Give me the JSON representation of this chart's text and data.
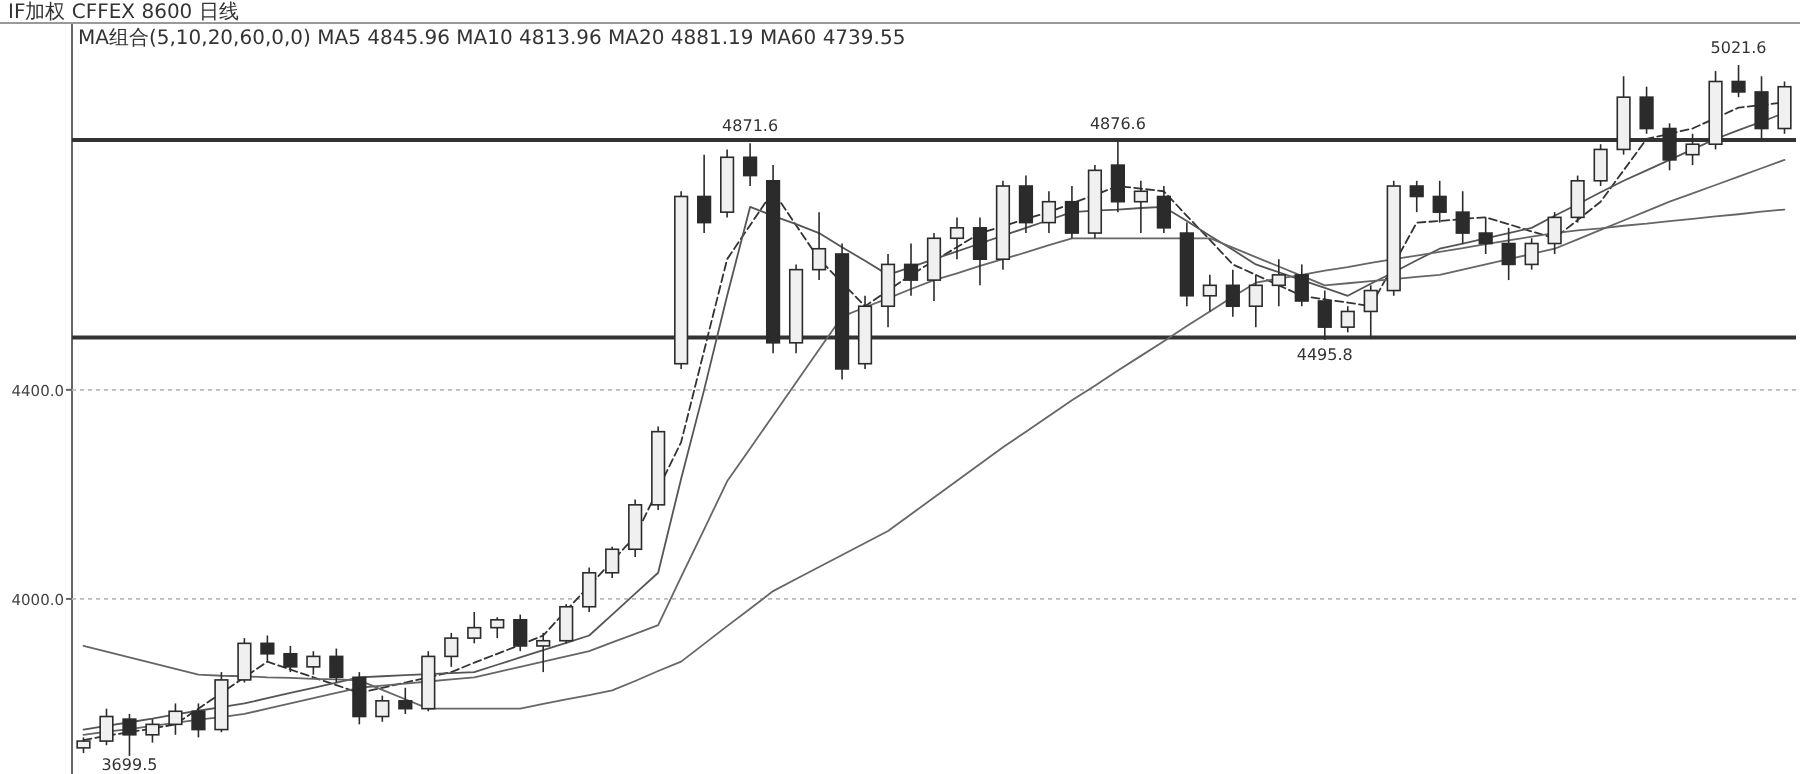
{
  "chart_data": {
    "type": "candlestick",
    "title": "IF加权  CFFEX 8600  日线",
    "subtitle": "MA组合(5,10,20,60,0,0)  MA5 4845.96  MA10 4813.96  MA20 4881.19  MA60 4739.55",
    "categories": [
      null,
      null,
      null,
      null,
      null,
      null,
      null,
      null,
      null,
      null,
      null,
      null,
      null,
      null,
      null,
      null,
      null,
      null,
      null,
      null,
      null,
      null,
      null,
      null,
      null,
      null,
      null,
      null,
      null,
      null,
      null,
      null,
      null,
      null,
      null,
      null,
      null,
      null,
      null,
      null,
      null,
      null,
      null,
      null,
      null,
      null,
      null,
      null,
      null,
      null,
      null,
      null,
      null,
      null,
      null,
      null,
      null,
      null,
      null,
      null,
      null,
      null,
      null,
      null,
      null,
      null,
      null,
      null,
      null,
      null,
      null,
      null,
      null,
      null,
      null
    ],
    "ohlc": [
      [
        3715,
        3735,
        3705,
        3728
      ],
      [
        3728,
        3790,
        3720,
        3775
      ],
      [
        3770,
        3780,
        3699.5,
        3740
      ],
      [
        3740,
        3770,
        3725,
        3760
      ],
      [
        3760,
        3800,
        3740,
        3785
      ],
      [
        3785,
        3800,
        3735,
        3750
      ],
      [
        3750,
        3860,
        3745,
        3845
      ],
      [
        3845,
        3925,
        3840,
        3915
      ],
      [
        3915,
        3930,
        3880,
        3895
      ],
      [
        3895,
        3910,
        3860,
        3870
      ],
      [
        3870,
        3900,
        3855,
        3890
      ],
      [
        3890,
        3905,
        3840,
        3850
      ],
      [
        3850,
        3860,
        3760,
        3775
      ],
      [
        3775,
        3815,
        3765,
        3805
      ],
      [
        3805,
        3830,
        3780,
        3790
      ],
      [
        3790,
        3900,
        3785,
        3890
      ],
      [
        3890,
        3935,
        3870,
        3925
      ],
      [
        3925,
        3975,
        3915,
        3945
      ],
      [
        3945,
        3965,
        3925,
        3960
      ],
      [
        3960,
        3970,
        3900,
        3910
      ],
      [
        3910,
        3935,
        3860,
        3920
      ],
      [
        3920,
        3990,
        3915,
        3985
      ],
      [
        3985,
        4060,
        3975,
        4050
      ],
      [
        4050,
        4100,
        4040,
        4095
      ],
      [
        4095,
        4190,
        4080,
        4180
      ],
      [
        4180,
        4330,
        4170,
        4320
      ],
      [
        4450,
        4780,
        4440,
        4770
      ],
      [
        4770,
        4850,
        4700,
        4720
      ],
      [
        4740,
        4860,
        4730,
        4845
      ],
      [
        4845,
        4871.6,
        4790,
        4810
      ],
      [
        4800,
        4830,
        4470,
        4490
      ],
      [
        4490,
        4640,
        4470,
        4630
      ],
      [
        4630,
        4740,
        4610,
        4670
      ],
      [
        4660,
        4680,
        4420,
        4440
      ],
      [
        4450,
        4580,
        4440,
        4560
      ],
      [
        4560,
        4660,
        4520,
        4640
      ],
      [
        4640,
        4680,
        4580,
        4610
      ],
      [
        4610,
        4700,
        4570,
        4690
      ],
      [
        4690,
        4730,
        4650,
        4710
      ],
      [
        4710,
        4730,
        4600,
        4650
      ],
      [
        4650,
        4800,
        4630,
        4790
      ],
      [
        4790,
        4810,
        4700,
        4720
      ],
      [
        4720,
        4780,
        4700,
        4760
      ],
      [
        4760,
        4790,
        4690,
        4700
      ],
      [
        4700,
        4830,
        4690,
        4820
      ],
      [
        4830,
        4876.6,
        4740,
        4760
      ],
      [
        4760,
        4800,
        4700,
        4780
      ],
      [
        4770,
        4790,
        4700,
        4710
      ],
      [
        4700,
        4720,
        4560,
        4580
      ],
      [
        4580,
        4620,
        4550,
        4600
      ],
      [
        4600,
        4630,
        4540,
        4560
      ],
      [
        4560,
        4620,
        4520,
        4600
      ],
      [
        4600,
        4650,
        4560,
        4620
      ],
      [
        4620,
        4640,
        4560,
        4570
      ],
      [
        4570,
        4590,
        4495.8,
        4520
      ],
      [
        4520,
        4560,
        4510,
        4550
      ],
      [
        4550,
        4600,
        4500,
        4590
      ],
      [
        4590,
        4800,
        4580,
        4790
      ],
      [
        4790,
        4800,
        4740,
        4770
      ],
      [
        4770,
        4800,
        4720,
        4740
      ],
      [
        4740,
        4780,
        4680,
        4700
      ],
      [
        4700,
        4730,
        4660,
        4680
      ],
      [
        4680,
        4710,
        4610,
        4640
      ],
      [
        4640,
        4690,
        4630,
        4680
      ],
      [
        4680,
        4740,
        4660,
        4730
      ],
      [
        4730,
        4810,
        4720,
        4800
      ],
      [
        4800,
        4870,
        4790,
        4860
      ],
      [
        4860,
        5000,
        4850,
        4960
      ],
      [
        4960,
        4980,
        4890,
        4900
      ],
      [
        4900,
        4910,
        4820,
        4840
      ],
      [
        4850,
        4890,
        4830,
        4870
      ],
      [
        4870,
        5010,
        4860,
        4990
      ],
      [
        4990,
        5021.6,
        4960,
        4970
      ],
      [
        4970,
        5000,
        4880,
        4900
      ],
      [
        4900,
        4990,
        4890,
        4980
      ]
    ],
    "color": "#2b2b2b",
    "series": [
      {
        "type": "line",
        "color": "#333333",
        "line_style": "dashed",
        "values": [
          3730,
          3738,
          3745,
          3752,
          3760,
          3790,
          3820,
          3850,
          3880,
          3865,
          3850,
          3835,
          3820,
          3830,
          3840,
          3850,
          3860,
          3878,
          3895,
          3912,
          3930,
          3978,
          4025,
          4072,
          4120,
          4210,
          4300,
          4475,
          4650,
          4715,
          4780,
          4715,
          4650,
          4605,
          4560,
          4590,
          4620,
          4647,
          4673,
          4700,
          4713,
          4727,
          4740,
          4757,
          4773,
          4790,
          4785,
          4780,
          4733,
          4687,
          4640,
          4620,
          4600,
          4580,
          4573,
          4567,
          4560,
          4640,
          4720,
          4723,
          4727,
          4730,
          4717,
          4703,
          4690,
          4725,
          4760,
          4820,
          4880,
          4890,
          4900,
          4920,
          4940,
          4945,
          4950
        ]
      },
      {
        "type": "line",
        "color": "#555555",
        "line_style": "solid",
        "values": [
          3750,
          3757,
          3764,
          3771,
          3779,
          3786,
          3793,
          3800,
          3810,
          3820,
          3830,
          3840,
          3850,
          3852,
          3854,
          3856,
          3858,
          3860,
          3874,
          3888,
          3902,
          3916,
          3930,
          3970,
          4010,
          4050,
          4230,
          4400,
          4580,
          4750,
          4733,
          4717,
          4700,
          4673,
          4647,
          4620,
          4635,
          4650,
          4665,
          4680,
          4695,
          4710,
          4725,
          4740,
          4743,
          4745,
          4748,
          4750,
          4723,
          4695,
          4668,
          4640,
          4625,
          4610,
          4595,
          4580,
          4603,
          4625,
          4648,
          4670,
          4680,
          4690,
          4700,
          4710,
          4733,
          4755,
          4778,
          4800,
          4820,
          4840,
          4860,
          4880,
          4897,
          4913,
          4930
        ]
      },
      {
        "type": "line",
        "color": "#666666",
        "line_style": "solid",
        "values": [
          3740,
          3746,
          3751,
          3757,
          3763,
          3769,
          3774,
          3780,
          3790,
          3800,
          3810,
          3820,
          3830,
          3834,
          3838,
          3842,
          3846,
          3850,
          3860,
          3870,
          3880,
          3890,
          3900,
          3917,
          3933,
          3950,
          4042,
          4133,
          4225,
          4288,
          4351,
          4414,
          4477,
          4540,
          4558,
          4575,
          4593,
          4610,
          4623,
          4637,
          4650,
          4663,
          4677,
          4690,
          4690,
          4690,
          4690,
          4690,
          4690,
          4690,
          4672,
          4654,
          4636,
          4618,
          4600,
          4604,
          4608,
          4612,
          4616,
          4620,
          4630,
          4640,
          4650,
          4660,
          4670,
          4688,
          4706,
          4724,
          4742,
          4760,
          4776,
          4792,
          4808,
          4824,
          4840
        ]
      },
      {
        "type": "line",
        "color": "#666666",
        "line_style": "solid",
        "values": [
          3910,
          3899,
          3888,
          3877,
          3866,
          3855,
          3853,
          3852,
          3850,
          3849,
          3847,
          3846,
          3844,
          3826,
          3808,
          3790,
          3790,
          3790,
          3790,
          3790,
          3799,
          3808,
          3816,
          3825,
          3843,
          3862,
          3880,
          3914,
          3948,
          3981,
          4015,
          4038,
          4061,
          4084,
          4107,
          4130,
          4162,
          4194,
          4226,
          4258,
          4290,
          4320,
          4350,
          4380,
          4408,
          4437,
          4465,
          4493,
          4522,
          4550,
          4578,
          4605,
          4613,
          4620,
          4628,
          4635,
          4643,
          4650,
          4657,
          4664,
          4671,
          4679,
          4686,
          4693,
          4700,
          4705,
          4709,
          4714,
          4718,
          4723,
          4727,
          4732,
          4736,
          4741,
          4745
        ]
      }
    ],
    "ylim": [
      3665,
      5100
    ],
    "yticks": [
      {
        "value": 4000,
        "label": "4000.0"
      },
      {
        "value": 4400,
        "label": "4400.0"
      }
    ],
    "tick_labels": "y",
    "grid": "y",
    "ref_lines": [
      {
        "axis": "y",
        "value": 4878,
        "color": "#333333"
      },
      {
        "axis": "y",
        "value": 4500,
        "color": "#333333"
      }
    ],
    "annotations": [
      {
        "text": "4871.6",
        "y": 4871.6
      },
      {
        "text": "4876.6",
        "y": 4876.6
      },
      {
        "text": "5021.6",
        "y": 5021.6
      },
      {
        "text": "4495.8",
        "y": 4495.8
      },
      {
        "text": "3699.5",
        "y": 3699.5
      }
    ]
  }
}
